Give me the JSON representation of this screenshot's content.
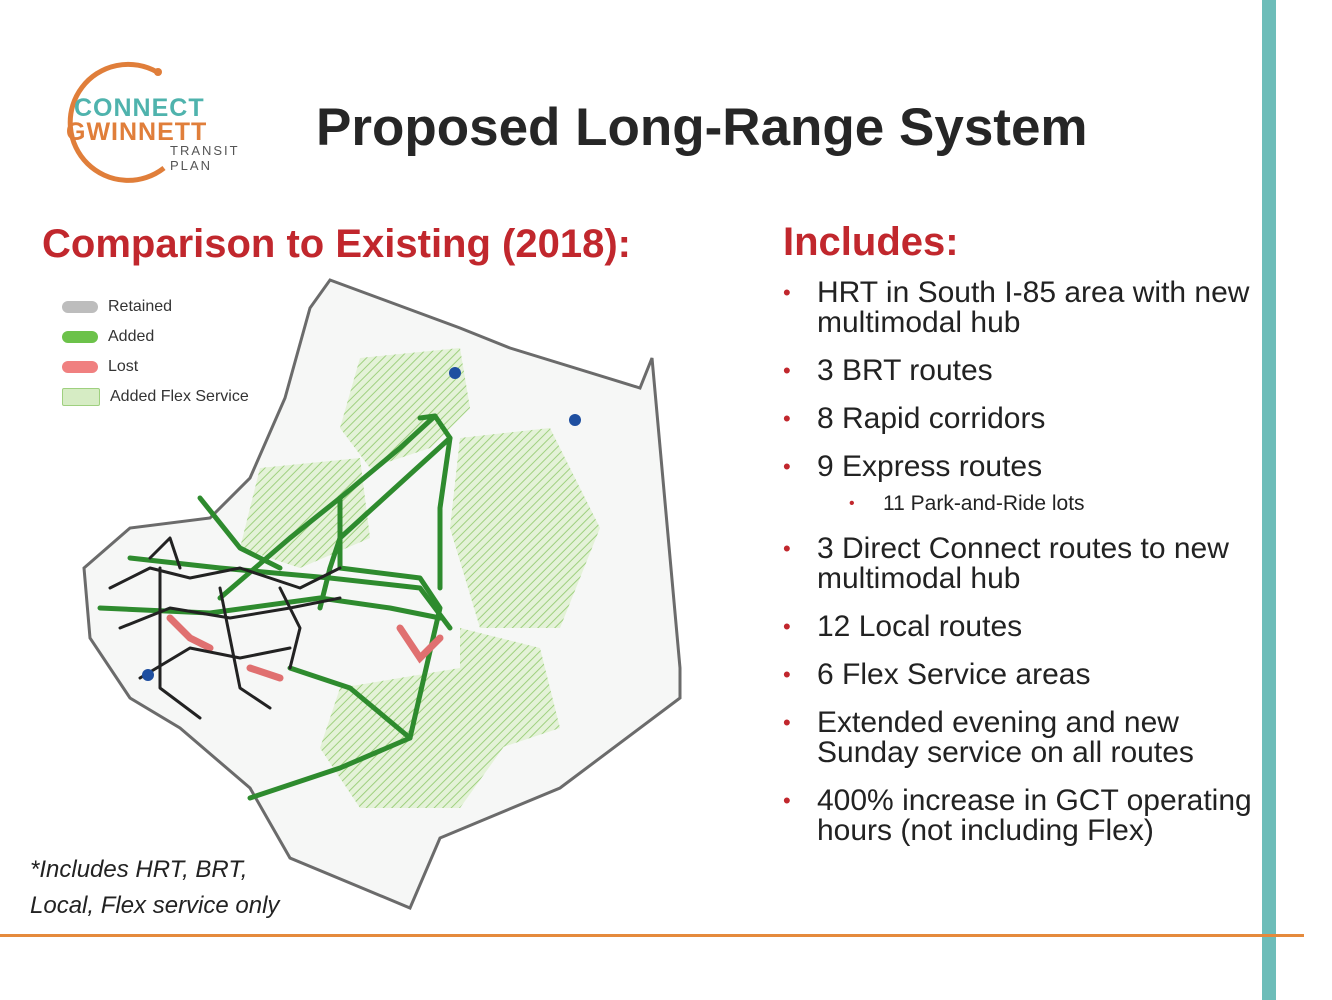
{
  "logo": {
    "line1": "CONNECT",
    "line2": "GWINNETT",
    "line3": "TRANSIT",
    "line4": "PLAN",
    "colors": {
      "teal": "#4fb3ad",
      "orange": "#e07e3a"
    }
  },
  "title": "Proposed Long-Range System",
  "left": {
    "heading": "Comparison to Existing (2018):",
    "legend": [
      {
        "label": "Retained",
        "color": "#bdbdbd"
      },
      {
        "label": "Added",
        "color": "#6cc24a"
      },
      {
        "label": "Lost",
        "color": "#f08080"
      },
      {
        "label": "Added Flex Service",
        "color": "#d6ecc4"
      }
    ],
    "footnote_line1": "*Includes HRT, BRT,",
    "footnote_line2": "Local, Flex service only"
  },
  "right": {
    "heading": "Includes:",
    "items": [
      {
        "text": "HRT in South I-85 area with new multimodal hub",
        "level": 1
      },
      {
        "text": "3 BRT routes",
        "level": 1
      },
      {
        "text": "8 Rapid corridors",
        "level": 1
      },
      {
        "text": "9 Express routes",
        "level": 1
      },
      {
        "text": "11 Park-and-Ride lots",
        "level": 2
      },
      {
        "text": "3 Direct Connect routes to new multimodal hub",
        "level": 1
      },
      {
        "text": "12 Local routes",
        "level": 1
      },
      {
        "text": "6 Flex Service areas",
        "level": 1
      },
      {
        "text": "Extended evening and new Sunday service on all routes",
        "level": 1
      },
      {
        "text": "400% increase in GCT operating hours (not including Flex)",
        "level": 1
      }
    ]
  },
  "accents": {
    "red": "#c1272d",
    "teal_rule": "#6dbdb9",
    "orange_rule": "#e58a3c"
  }
}
